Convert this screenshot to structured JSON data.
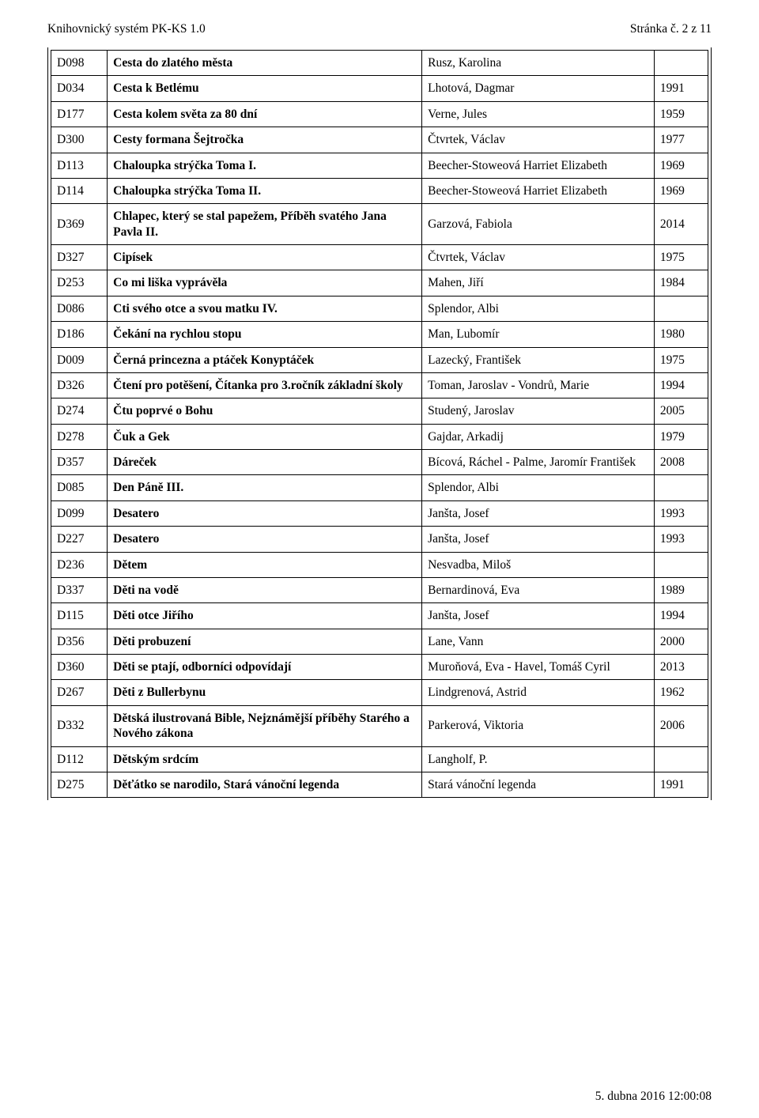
{
  "header": {
    "left": "Knihovnický systém PK-KS 1.0",
    "right": "Stránka č. 2 z 11"
  },
  "footer": "5. dubna 2016 12:00:08",
  "columns": {
    "code_w": 56,
    "title_w": 382,
    "author_w": 278,
    "year_w": 53
  },
  "rows": [
    {
      "code": "D098",
      "title": "Cesta do zlatého města",
      "author": "Rusz, Karolina",
      "year": ""
    },
    {
      "code": "D034",
      "title": "Cesta k Betlému",
      "author": "Lhotová, Dagmar",
      "year": "1991"
    },
    {
      "code": "D177",
      "title": "Cesta kolem světa za 80 dní",
      "author": "Verne, Jules",
      "year": "1959"
    },
    {
      "code": "D300",
      "title": "Cesty formana Šejtročka",
      "author": "Čtvrtek, Václav",
      "year": "1977"
    },
    {
      "code": "D113",
      "title": "Chaloupka strýčka Toma I.",
      "author": "Beecher-Stoweová Harriet Elizabeth",
      "year": "1969"
    },
    {
      "code": "D114",
      "title": "Chaloupka strýčka Toma II.",
      "author": "Beecher-Stoweová Harriet Elizabeth",
      "year": "1969"
    },
    {
      "code": "D369",
      "title": "Chlapec, který se stal papežem, Příběh svatého Jana Pavla II.",
      "author": "Garzová, Fabiola",
      "year": "2014"
    },
    {
      "code": "D327",
      "title": "Cipísek",
      "author": "Čtvrtek, Václav",
      "year": "1975"
    },
    {
      "code": "D253",
      "title": "Co mi liška vyprávěla",
      "author": "Mahen, Jiří",
      "year": "1984"
    },
    {
      "code": "D086",
      "title": "Cti svého otce a svou matku IV.",
      "author": "Splendor, Albi",
      "year": ""
    },
    {
      "code": "D186",
      "title": "Čekání na rychlou stopu",
      "author": "Man, Lubomír",
      "year": "1980"
    },
    {
      "code": "D009",
      "title": "Černá princezna a ptáček Konyptáček",
      "author": "Lazecký, František",
      "year": "1975"
    },
    {
      "code": "D326",
      "title": "Čtení pro potěšení, Čítanka pro 3.ročník základní školy",
      "author": "Toman, Jaroslav - Vondrů, Marie",
      "year": "1994"
    },
    {
      "code": "D274",
      "title": "Čtu poprvé o Bohu",
      "author": "Studený, Jaroslav",
      "year": "2005"
    },
    {
      "code": "D278",
      "title": "Čuk a Gek",
      "author": "Gajdar, Arkadij",
      "year": "1979"
    },
    {
      "code": "D357",
      "title": "Dáreček",
      "author": "Bícová, Ráchel - Palme, Jaromír František",
      "year": "2008"
    },
    {
      "code": "D085",
      "title": "Den Páně III.",
      "author": "Splendor, Albi",
      "year": ""
    },
    {
      "code": "D099",
      "title": "Desatero",
      "author": "Janšta, Josef",
      "year": "1993"
    },
    {
      "code": "D227",
      "title": "Desatero",
      "author": "Janšta, Josef",
      "year": "1993"
    },
    {
      "code": "D236",
      "title": "Dětem",
      "author": "Nesvadba, Miloš",
      "year": ""
    },
    {
      "code": "D337",
      "title": "Děti na vodě",
      "author": "Bernardinová, Eva",
      "year": "1989"
    },
    {
      "code": "D115",
      "title": "Děti otce Jiřího",
      "author": "Janšta, Josef",
      "year": "1994"
    },
    {
      "code": "D356",
      "title": "Děti probuzení",
      "author": "Lane, Vann",
      "year": "2000"
    },
    {
      "code": "D360",
      "title": "Děti se ptají, odborníci odpovídají",
      "author": "Muroňová, Eva - Havel, Tomáš Cyril",
      "year": "2013"
    },
    {
      "code": "D267",
      "title": "Děti z Bullerbynu",
      "author": "Lindgrenová, Astrid",
      "year": "1962"
    },
    {
      "code": "D332",
      "title": "Dětská ilustrovaná Bible, Nejznámější příběhy Starého a Nového zákona",
      "author": "Parkerová, Viktoria",
      "year": "2006"
    },
    {
      "code": "D112",
      "title": "Dětským srdcím",
      "author": "Langholf, P.",
      "year": ""
    },
    {
      "code": "D275",
      "title": "Děťátko se narodilo, Stará vánoční legenda",
      "author": "Stará vánoční legenda",
      "year": "1991"
    }
  ]
}
